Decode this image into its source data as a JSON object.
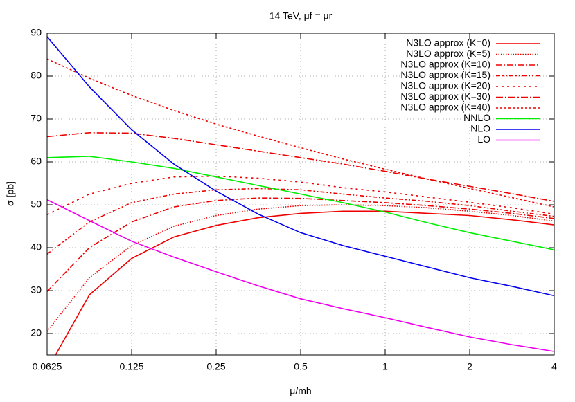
{
  "chart_data": {
    "type": "line",
    "title": "14 TeV, μf = μr",
    "x_label": "μ/mh",
    "y_label": "σ [pb]",
    "log_x": true,
    "grid": true,
    "legend": "top-right",
    "x": [
      0.0625,
      0.0884,
      0.125,
      0.1768,
      0.25,
      0.3536,
      0.5,
      0.7071,
      1,
      1.4142,
      2,
      2.8284,
      4
    ],
    "xlim": [
      0.0625,
      4
    ],
    "xticks": [
      0.0625,
      0.125,
      0.25,
      0.5,
      1,
      2,
      4
    ],
    "ylim": [
      15,
      90
    ],
    "yticks": [
      20,
      30,
      40,
      50,
      60,
      70,
      80,
      90
    ],
    "series": [
      {
        "name": "N3LO approx (K=0)",
        "color": "#ee0000",
        "values": [
          11.5,
          29,
          37.5,
          42.5,
          45.2,
          47,
          48,
          48.5,
          48.5,
          48,
          47.5,
          46.5,
          45.3
        ]
      },
      {
        "name": "N3LO approx (K=5)",
        "color": "#ee0000",
        "dash": "1.5,2",
        "values": [
          20.5,
          33,
          40.5,
          45,
          47.5,
          49,
          49.8,
          50,
          49.8,
          49.3,
          48.5,
          47.5,
          46.2
        ]
      },
      {
        "name": "N3LO approx (K=10)",
        "color": "#ee0000",
        "dash": "8,3,2,3",
        "values": [
          29.8,
          40,
          46,
          49.5,
          51,
          51.6,
          51.5,
          51,
          50.5,
          49.8,
          49,
          48,
          46.8
        ]
      },
      {
        "name": "N3LO approx (K=15)",
        "color": "#ee0000",
        "dash": "6,3,2,3,2,3",
        "values": [
          38.5,
          46,
          50.5,
          52.5,
          53.5,
          53.8,
          53.5,
          52.5,
          51.6,
          50.8,
          49.8,
          48.5,
          47.3
        ]
      },
      {
        "name": "N3LO approx (K=20)",
        "color": "#ee0000",
        "dash": "3,5",
        "values": [
          47.7,
          52.5,
          55,
          56.5,
          56.7,
          56.2,
          55.3,
          54,
          53,
          51.8,
          50.6,
          49.3,
          47.8
        ]
      },
      {
        "name": "N3LO approx (K=30)",
        "color": "#ee0000",
        "dash": "10,3,2,3",
        "values": [
          65.9,
          66.8,
          66.7,
          65.5,
          64,
          62.5,
          61,
          59.5,
          57.8,
          56,
          54.3,
          52.6,
          50.8
        ]
      },
      {
        "name": "N3LO approx (K=40)",
        "color": "#ee0000",
        "dash": "3,3",
        "values": [
          84,
          79.5,
          75.5,
          72,
          68.8,
          66,
          63.3,
          60.7,
          58.3,
          56,
          53.8,
          51.7,
          49.5
        ]
      },
      {
        "name": "NNLO",
        "color": "#00ee00",
        "values": [
          61,
          61.3,
          60,
          58.5,
          56.5,
          54.5,
          52.5,
          50.5,
          48.3,
          45.8,
          43.5,
          41.5,
          39.5
        ]
      },
      {
        "name": "NLO",
        "color": "#0000ee",
        "values": [
          89.2,
          77.5,
          67.5,
          59.5,
          53.2,
          47.8,
          43.5,
          40.5,
          38,
          35.5,
          33,
          31,
          28.8
        ]
      },
      {
        "name": "LO",
        "color": "#ee00ee",
        "values": [
          51.2,
          46.3,
          41.5,
          37.8,
          34.4,
          31.1,
          28.1,
          25.8,
          23.7,
          21.4,
          19.2,
          17.4,
          15.8
        ]
      }
    ]
  }
}
